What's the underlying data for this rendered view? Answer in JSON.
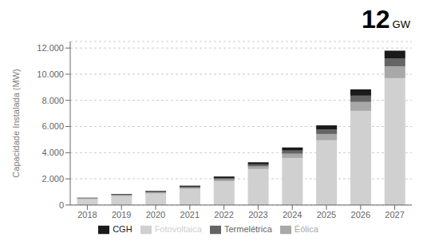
{
  "chart_data": {
    "type": "bar",
    "stacked": true,
    "grid": true,
    "legend": "bottom",
    "categories": [
      "2018",
      "2019",
      "2020",
      "2021",
      "2022",
      "2023",
      "2024",
      "2025",
      "2026",
      "2027"
    ],
    "series": [
      {
        "name": "Fotovoltaica",
        "color": "#d0d0d0",
        "values": [
          450,
          680,
          880,
          1230,
          1820,
          2750,
          3600,
          4950,
          7200,
          9700
        ]
      },
      {
        "name": "Éólica",
        "color": "#a8a8a8",
        "values": [
          55,
          80,
          85,
          100,
          140,
          200,
          320,
          480,
          680,
          900
        ]
      },
      {
        "name": "Termelétrica",
        "color": "#646464",
        "values": [
          30,
          45,
          55,
          75,
          110,
          160,
          240,
          330,
          480,
          620
        ]
      },
      {
        "name": "CGH",
        "color": "#1a1a1a",
        "values": [
          25,
          45,
          55,
          75,
          110,
          160,
          240,
          330,
          480,
          580
        ]
      }
    ],
    "ylabel": "Capacidade Instalada (MW)",
    "ylim": [
      0,
      12500
    ],
    "yticks": [
      0,
      {
        "value": 2000,
        "label": "2.000"
      },
      {
        "value": 4000,
        "label": "4.000"
      },
      {
        "value": 6000,
        "label": "6.000"
      },
      {
        "value": 8000,
        "label": "8.000"
      },
      {
        "value": 10000,
        "label": "10.000"
      },
      {
        "value": 12000,
        "label": "12.000"
      }
    ],
    "annotations": [
      "12",
      "GW"
    ]
  }
}
